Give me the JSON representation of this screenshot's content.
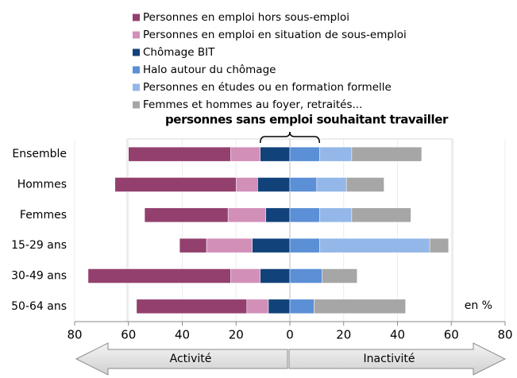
{
  "chart_data": {
    "type": "bar",
    "orientation": "horizontal",
    "stacked": true,
    "annotation": "personnes sans emploi souhaitant travailler",
    "unit_label": "en %",
    "direction_labels": [
      "Activité",
      "Inactivité"
    ],
    "categories": [
      "Ensemble",
      "Hommes",
      "Femmes",
      "15-29 ans",
      "30-49 ans",
      "50-64 ans"
    ],
    "series": [
      {
        "name": "Personnes en emploi hors sous-emploi",
        "color": "#93406e",
        "values": [
          -38,
          -45,
          -31,
          -10,
          -53,
          -41
        ]
      },
      {
        "name": "Personnes en emploi en situation de sous-emploi",
        "color": "#d28fb8",
        "values": [
          -11,
          -8,
          -14,
          -17,
          -11,
          -8
        ]
      },
      {
        "name": "Chômage BIT",
        "color": "#12427a",
        "values": [
          -11,
          -12,
          -9,
          -14,
          -11,
          -8
        ]
      },
      {
        "name": "Halo autour du chômage",
        "color": "#5b8fd6",
        "values": [
          11,
          10,
          11,
          11,
          12,
          9
        ]
      },
      {
        "name": "Personnes en études ou en formation formelle",
        "color": "#93b7e8",
        "values": [
          12,
          11,
          12,
          41,
          0,
          0
        ]
      },
      {
        "name": "Femmes et hommes au foyer, retraités...",
        "color": "#a6a6a6",
        "values": [
          26,
          14,
          22,
          7,
          13,
          34
        ]
      }
    ],
    "xlim": [
      -80,
      80
    ],
    "xticks": [
      {
        "value": -80,
        "label": "80"
      },
      {
        "value": -60,
        "label": "60"
      },
      {
        "value": -40,
        "label": "40"
      },
      {
        "value": -20,
        "label": "20"
      },
      0,
      20,
      40,
      60,
      80
    ],
    "grid": true
  }
}
